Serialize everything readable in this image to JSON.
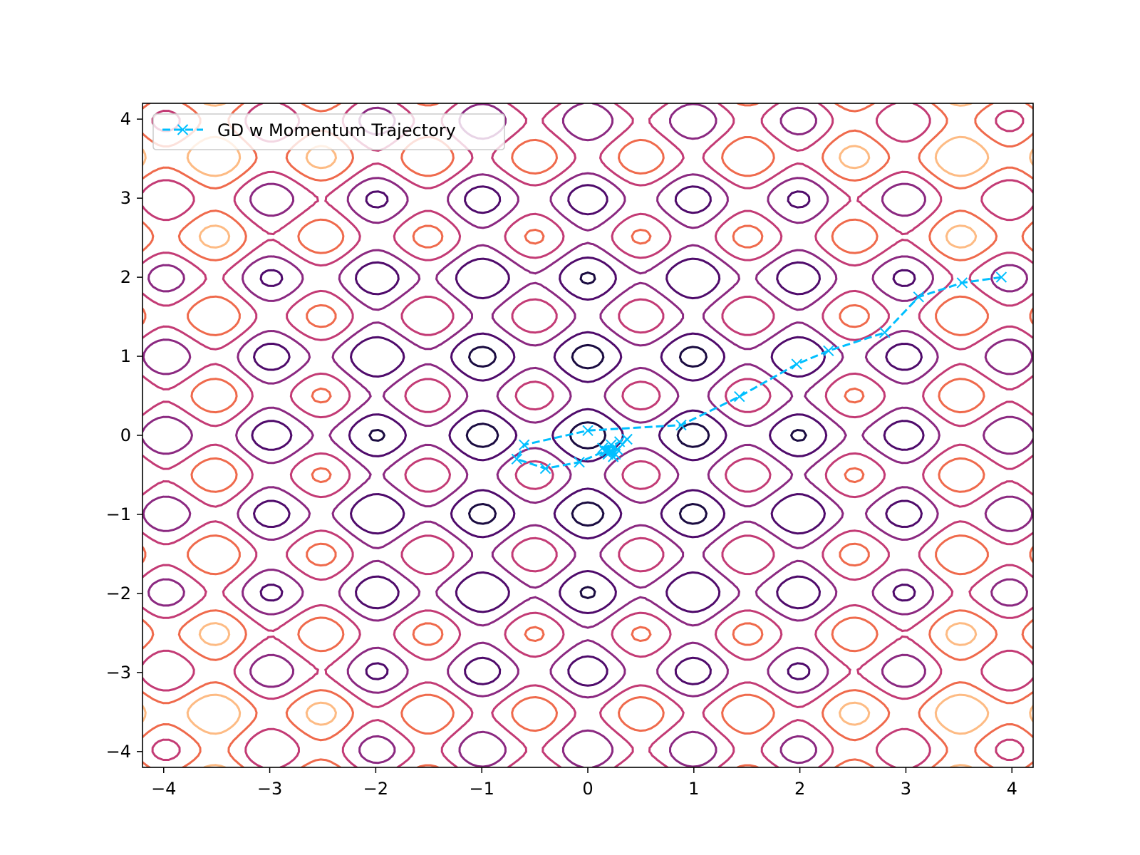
{
  "chart_data": {
    "type": "line",
    "title": "",
    "xlabel": "",
    "ylabel": "",
    "xlim": [
      -4.2,
      4.2
    ],
    "ylim": [
      -4.2,
      4.2
    ],
    "grid": false,
    "legend_position": "top-left",
    "x_ticks": [
      {
        "value": -4,
        "label": "−4"
      },
      {
        "value": -3,
        "label": "−3"
      },
      {
        "value": -2,
        "label": "−2"
      },
      {
        "value": -1,
        "label": "−1"
      },
      {
        "value": 0,
        "label": "0"
      },
      {
        "value": 1,
        "label": "1"
      },
      {
        "value": 2,
        "label": "2"
      },
      {
        "value": 3,
        "label": "3"
      },
      {
        "value": 4,
        "label": "4"
      }
    ],
    "y_ticks": [
      {
        "value": 4,
        "label": "4"
      },
      {
        "value": 3,
        "label": "3"
      },
      {
        "value": 2,
        "label": "2"
      },
      {
        "value": 1,
        "label": "1"
      },
      {
        "value": 0,
        "label": "0"
      },
      {
        "value": -1,
        "label": "−1"
      },
      {
        "value": -2,
        "label": "−2"
      },
      {
        "value": -3,
        "label": "−3"
      },
      {
        "value": -4,
        "label": "−4"
      }
    ],
    "background_contours": {
      "colormap": "magma",
      "levels": [
        5,
        15,
        25,
        35,
        45,
        55
      ],
      "colors": [
        "#1b0c41",
        "#4f0b6b",
        "#8b2981",
        "#c33b75",
        "#ef6a4c",
        "#fdbb84"
      ]
    },
    "series": [
      {
        "name": "GD w Momentum Trajectory",
        "color": "#00bfff",
        "line_style": "dashed",
        "marker": "x",
        "x": [
          3.9,
          3.53,
          3.12,
          2.8,
          2.27,
          1.97,
          1.43,
          0.88,
          0.0,
          -0.6,
          -0.67,
          -0.4,
          -0.08,
          0.16,
          0.3,
          0.37,
          0.28,
          0.19,
          0.14,
          0.22,
          0.26,
          0.18,
          0.24,
          0.2,
          0.22,
          0.21
        ],
        "y": [
          2.0,
          1.93,
          1.75,
          1.3,
          1.07,
          0.9,
          0.49,
          0.13,
          0.06,
          -0.12,
          -0.3,
          -0.42,
          -0.34,
          -0.2,
          -0.08,
          -0.05,
          -0.18,
          -0.24,
          -0.16,
          -0.12,
          -0.24,
          -0.2,
          -0.27,
          -0.22,
          -0.2,
          -0.21
        ]
      }
    ]
  }
}
